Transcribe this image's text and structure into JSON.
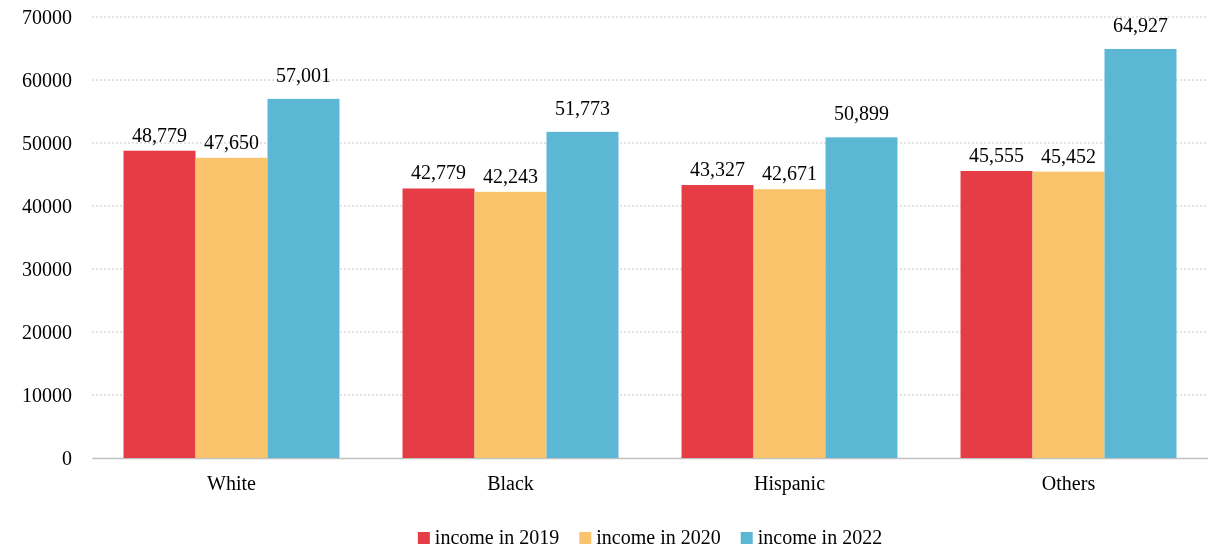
{
  "chart_data": {
    "type": "bar",
    "categories": [
      "White",
      "Black",
      "Hispanic",
      "Others"
    ],
    "series": [
      {
        "name": "income in 2019",
        "color": "#e63c46",
        "values": [
          48779,
          42779,
          43327,
          45555
        ],
        "value_labels": [
          "48,779",
          "42,779",
          "43,327",
          "45,555"
        ]
      },
      {
        "name": "income in 2020",
        "color": "#f9c46b",
        "values": [
          47650,
          42243,
          42671,
          45452
        ],
        "value_labels": [
          "47,650",
          "42,243",
          "42,671",
          "45,452"
        ]
      },
      {
        "name": "income in 2022",
        "color": "#5bb7d4",
        "values": [
          57001,
          51773,
          50899,
          64927
        ],
        "value_labels": [
          "57,001",
          "51,773",
          "50,899",
          "64,927"
        ]
      }
    ],
    "ylim": [
      0,
      70000
    ],
    "yticks": [
      0,
      10000,
      20000,
      30000,
      40000,
      50000,
      60000,
      70000
    ],
    "grid": "y",
    "legend": "bottom"
  }
}
